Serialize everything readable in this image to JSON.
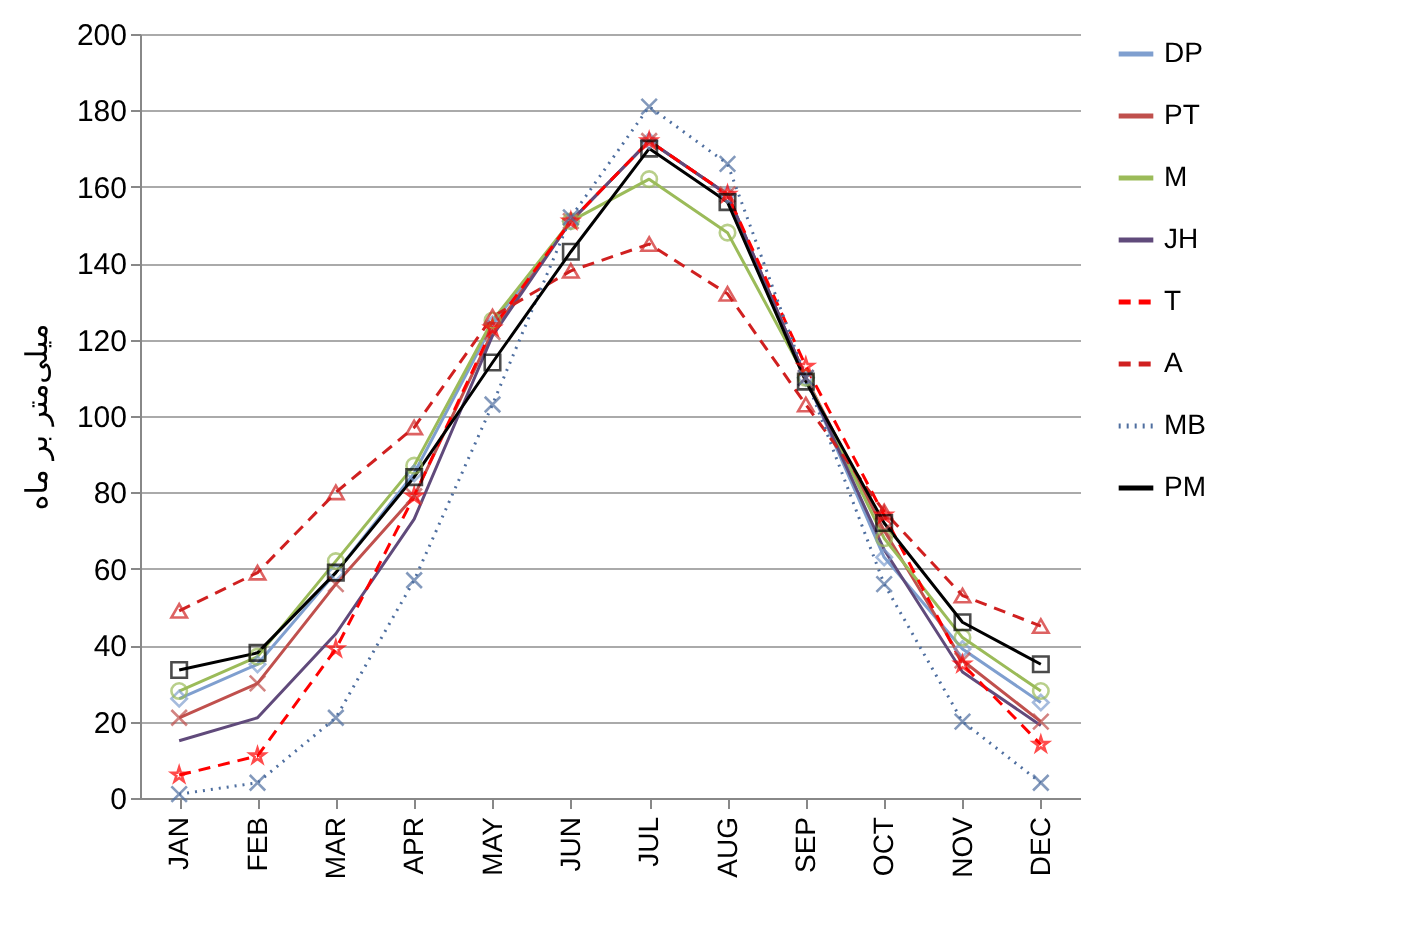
{
  "chart_data": {
    "type": "line",
    "ylabel": "میلی‌متر بر ماه",
    "categories": [
      "JAN",
      "FEB",
      "MAR",
      "APR",
      "MAY",
      "JUN",
      "JUL",
      "AUG",
      "SEP",
      "OCT",
      "NOV",
      "DEC"
    ],
    "ylim": [
      0,
      200
    ],
    "yticks": [
      0,
      20,
      40,
      60,
      80,
      100,
      120,
      140,
      160,
      180,
      200
    ],
    "grid": "y",
    "legend": "right",
    "series": [
      {
        "name": "DP",
        "color": "#7f9fcf",
        "marker": "diamond",
        "line_style": "solid",
        "values": [
          26,
          35,
          59,
          85,
          124,
          151,
          172,
          158,
          110,
          63,
          39,
          25
        ]
      },
      {
        "name": "PT",
        "color": "#c0504d",
        "marker": "cross",
        "line_style": "solid",
        "values": [
          21,
          30,
          56,
          79,
          122,
          151,
          172,
          158,
          110,
          70,
          36,
          20
        ]
      },
      {
        "name": "M",
        "color": "#9bbb59",
        "marker": "circle",
        "line_style": "solid",
        "values": [
          28,
          37,
          62,
          87,
          125,
          151,
          162,
          148,
          110,
          68,
          42,
          28
        ]
      },
      {
        "name": "JH",
        "color": "#604a7b",
        "marker": "none",
        "line_style": "solid",
        "values": [
          15,
          21,
          43,
          73,
          121,
          151,
          172,
          158,
          110,
          65,
          33,
          19
        ]
      },
      {
        "name": "T",
        "color": "#ff0000",
        "marker": "star",
        "line_style": "dashed",
        "values": [
          6,
          11,
          39,
          79,
          123,
          151,
          172,
          158,
          113,
          74,
          35,
          14
        ]
      },
      {
        "name": "A",
        "color": "#d02020",
        "marker": "triangle",
        "line_style": "dashed",
        "values": [
          49,
          59,
          80,
          97,
          126,
          138,
          145,
          132,
          103,
          75,
          53,
          45
        ]
      },
      {
        "name": "MB",
        "color": "#4f6fa0",
        "marker": "cross",
        "line_style": "dotted",
        "values": [
          1,
          4,
          21,
          57,
          103,
          152,
          181,
          166,
          110,
          56,
          20,
          4
        ]
      },
      {
        "name": "PM",
        "color": "#000000",
        "marker": "square",
        "line_style": "solid",
        "values": [
          33.5,
          38,
          59,
          84,
          114,
          143,
          170,
          156,
          109,
          72,
          46,
          35
        ]
      }
    ]
  }
}
